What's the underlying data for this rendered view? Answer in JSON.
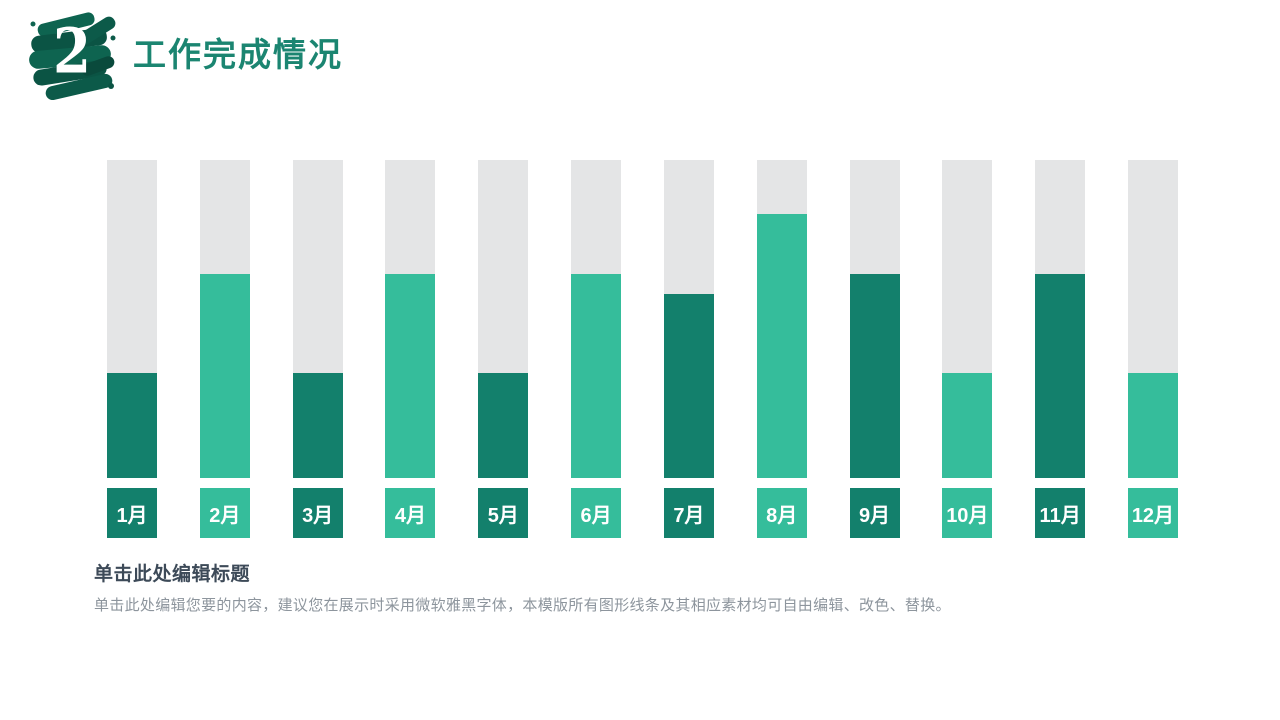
{
  "header": {
    "section_number": "2",
    "title": "工作完成情况"
  },
  "chart_data": {
    "type": "bar",
    "title": "",
    "xlabel": "",
    "ylabel": "",
    "categories": [
      "1月",
      "2月",
      "3月",
      "4月",
      "5月",
      "6月",
      "7月",
      "8月",
      "9月",
      "10月",
      "11月",
      "12月"
    ],
    "values": [
      33,
      64,
      33,
      64,
      33,
      64,
      58,
      83,
      64,
      33,
      64,
      33
    ],
    "unit": "percent-of-track",
    "ylim": [
      0,
      100
    ],
    "grid": false,
    "legend": "none",
    "bar_tones": [
      "dark",
      "light",
      "dark",
      "light",
      "dark",
      "light",
      "dark",
      "light",
      "dark",
      "light",
      "dark",
      "light"
    ],
    "colors": {
      "dark": "#13806c",
      "light": "#35bd9b",
      "track": "#e4e5e6",
      "label_text": "#ffffff"
    }
  },
  "caption": {
    "heading": "单击此处编辑标题",
    "paragraph": "单击此处编辑您要的内容，建议您在展示时采用微软雅黑字体，本模版所有图形线条及其相应素材均可自由编辑、改色、替换。"
  },
  "theme": {
    "title_green": "#1b8571",
    "splash_green_dark": "#0b5444",
    "splash_green_mid": "#0e6450",
    "heading_dark": "#3d4a58",
    "paragraph_gray": "#8d959d",
    "background": "#ffffff"
  }
}
